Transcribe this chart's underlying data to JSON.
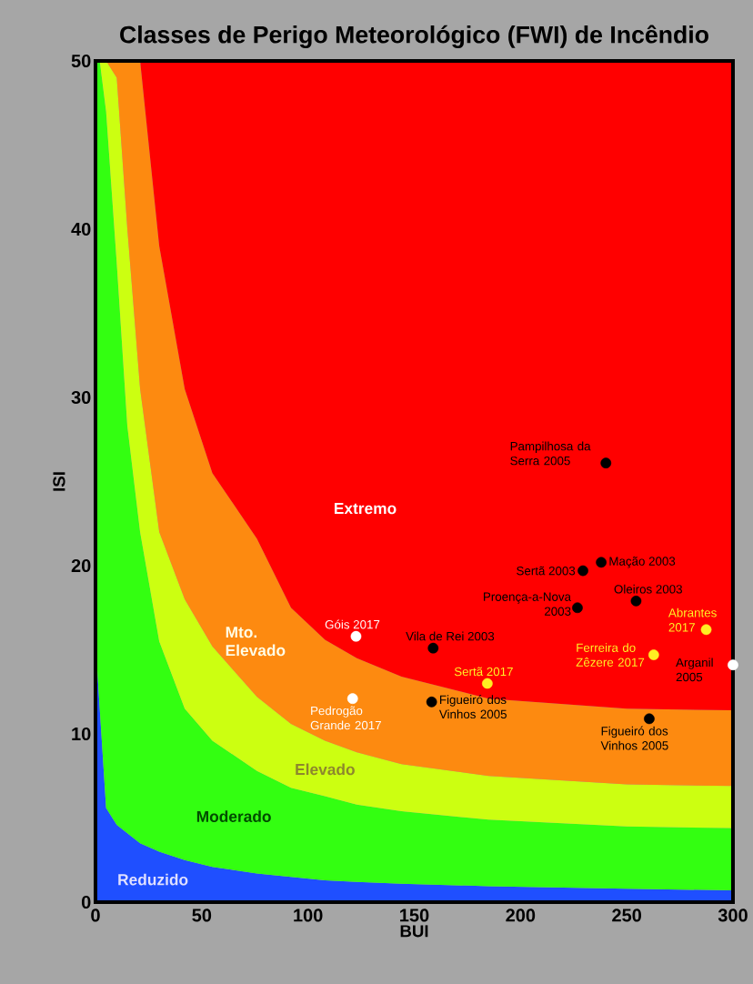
{
  "chart_data": {
    "type": "area",
    "stacked": true,
    "title": "Classes de Perigo Meteorológico (FWI) de Incêndio",
    "xlabel": "BUI",
    "ylabel": "ISI",
    "xlim": [
      0,
      300
    ],
    "ylim": [
      0,
      50
    ],
    "xticks": [
      0,
      50,
      100,
      150,
      200,
      250,
      300
    ],
    "yticks": [
      0,
      10,
      20,
      30,
      40,
      50
    ],
    "x": [
      0,
      2,
      5,
      10,
      15,
      21,
      30,
      42,
      55,
      76,
      92,
      108,
      123,
      144,
      185,
      250,
      300
    ],
    "series": [
      {
        "color": "#1f4fff",
        "values": [
          15.5,
          11.5,
          5.6,
          4.6,
          4.1,
          3.5,
          3.0,
          2.5,
          2.1,
          1.7,
          1.5,
          1.3,
          1.2,
          1.1,
          0.95,
          0.8,
          0.7
        ]
      },
      {
        "color": "#33ff11",
        "values": [
          34.5,
          38.5,
          41.4,
          33.4,
          24.2,
          18.5,
          12.5,
          9,
          7.5,
          6.1,
          5.3,
          5.0,
          4.6,
          4.3,
          3.95,
          3.7,
          3.7
        ]
      },
      {
        "color": "#ccff11",
        "values": [
          0,
          0,
          3,
          11,
          11.7,
          8.5,
          6.5,
          6.5,
          5.6,
          4.4,
          3.8,
          3.3,
          3.1,
          2.8,
          2.6,
          2.5,
          2.5
        ]
      },
      {
        "color": "#fd8a10",
        "values": [
          0,
          0,
          0,
          1,
          10,
          19.5,
          17,
          12.5,
          10.3,
          9.4,
          6.9,
          6.0,
          5.6,
          5.2,
          4.6,
          4.5,
          4.5
        ]
      },
      {
        "color": "#ff0000",
        "values": [
          0,
          0,
          0,
          0,
          0,
          0,
          11,
          19.5,
          24.5,
          28.4,
          32.5,
          34.4,
          35.5,
          36.6,
          37.9,
          38.5,
          38.6
        ]
      },
      {
        "type": "scatter",
        "marker": "circle",
        "color": "#000000",
        "x": [
          240.2,
          238.0,
          229.4,
          254.4,
          226.8,
          158.9,
          158.2,
          260.6
        ],
        "values": [
          26.1,
          20.2,
          19.7,
          17.9,
          17.5,
          15.1,
          11.9,
          10.9
        ]
      },
      {
        "type": "scatter",
        "marker": "circle",
        "color": "#ffffff",
        "x": [
          122.6,
          121.0,
          300
        ],
        "values": [
          15.8,
          12.1,
          14.1
        ]
      },
      {
        "type": "scatter",
        "marker": "circle",
        "color": "#ffee22",
        "x": [
          287.4,
          262.7,
          184.4
        ],
        "values": [
          16.2,
          14.7,
          13.0
        ]
      }
    ],
    "annotations": [
      "Extremo",
      "Mto. Elevado",
      "Elevado",
      "Moderado",
      "Reduzido",
      {
        "text": "Pampilhosa da Serra 2005",
        "x": 240.2,
        "y": 26.1
      },
      {
        "text": "Mação 2003",
        "x": 238.0,
        "y": 20.2
      },
      {
        "text": "Sertã 2003",
        "x": 229.4,
        "y": 19.7
      },
      {
        "text": "Oleiros 2003",
        "x": 254.4,
        "y": 17.9
      },
      {
        "text": "Proença-a-Nova 2003",
        "x": 226.8,
        "y": 17.5
      },
      {
        "text": "Abrantes 2017",
        "x": 287.4,
        "y": 16.2
      },
      {
        "text": "Góis 2017",
        "x": 122.6,
        "y": 15.8
      },
      {
        "text": "Vila de Rei 2003",
        "x": 158.9,
        "y": 15.1
      },
      {
        "text": "Ferreira do Zêzere 2017",
        "x": 262.7,
        "y": 14.7
      },
      {
        "text": "Arganil 2005",
        "x": 300,
        "y": 14.1
      },
      {
        "text": "Sertã 2017",
        "x": 184.4,
        "y": 13.0
      },
      {
        "text": "Pedrogão Grande 2017",
        "x": 121.0,
        "y": 12.1
      },
      {
        "text": "Figueiró dos Vinhos 2005",
        "x": 158.2,
        "y": 11.9
      },
      {
        "text": "Figueiró dos Vinhos 2005",
        "x": 260.6,
        "y": 10.9
      }
    ]
  }
}
